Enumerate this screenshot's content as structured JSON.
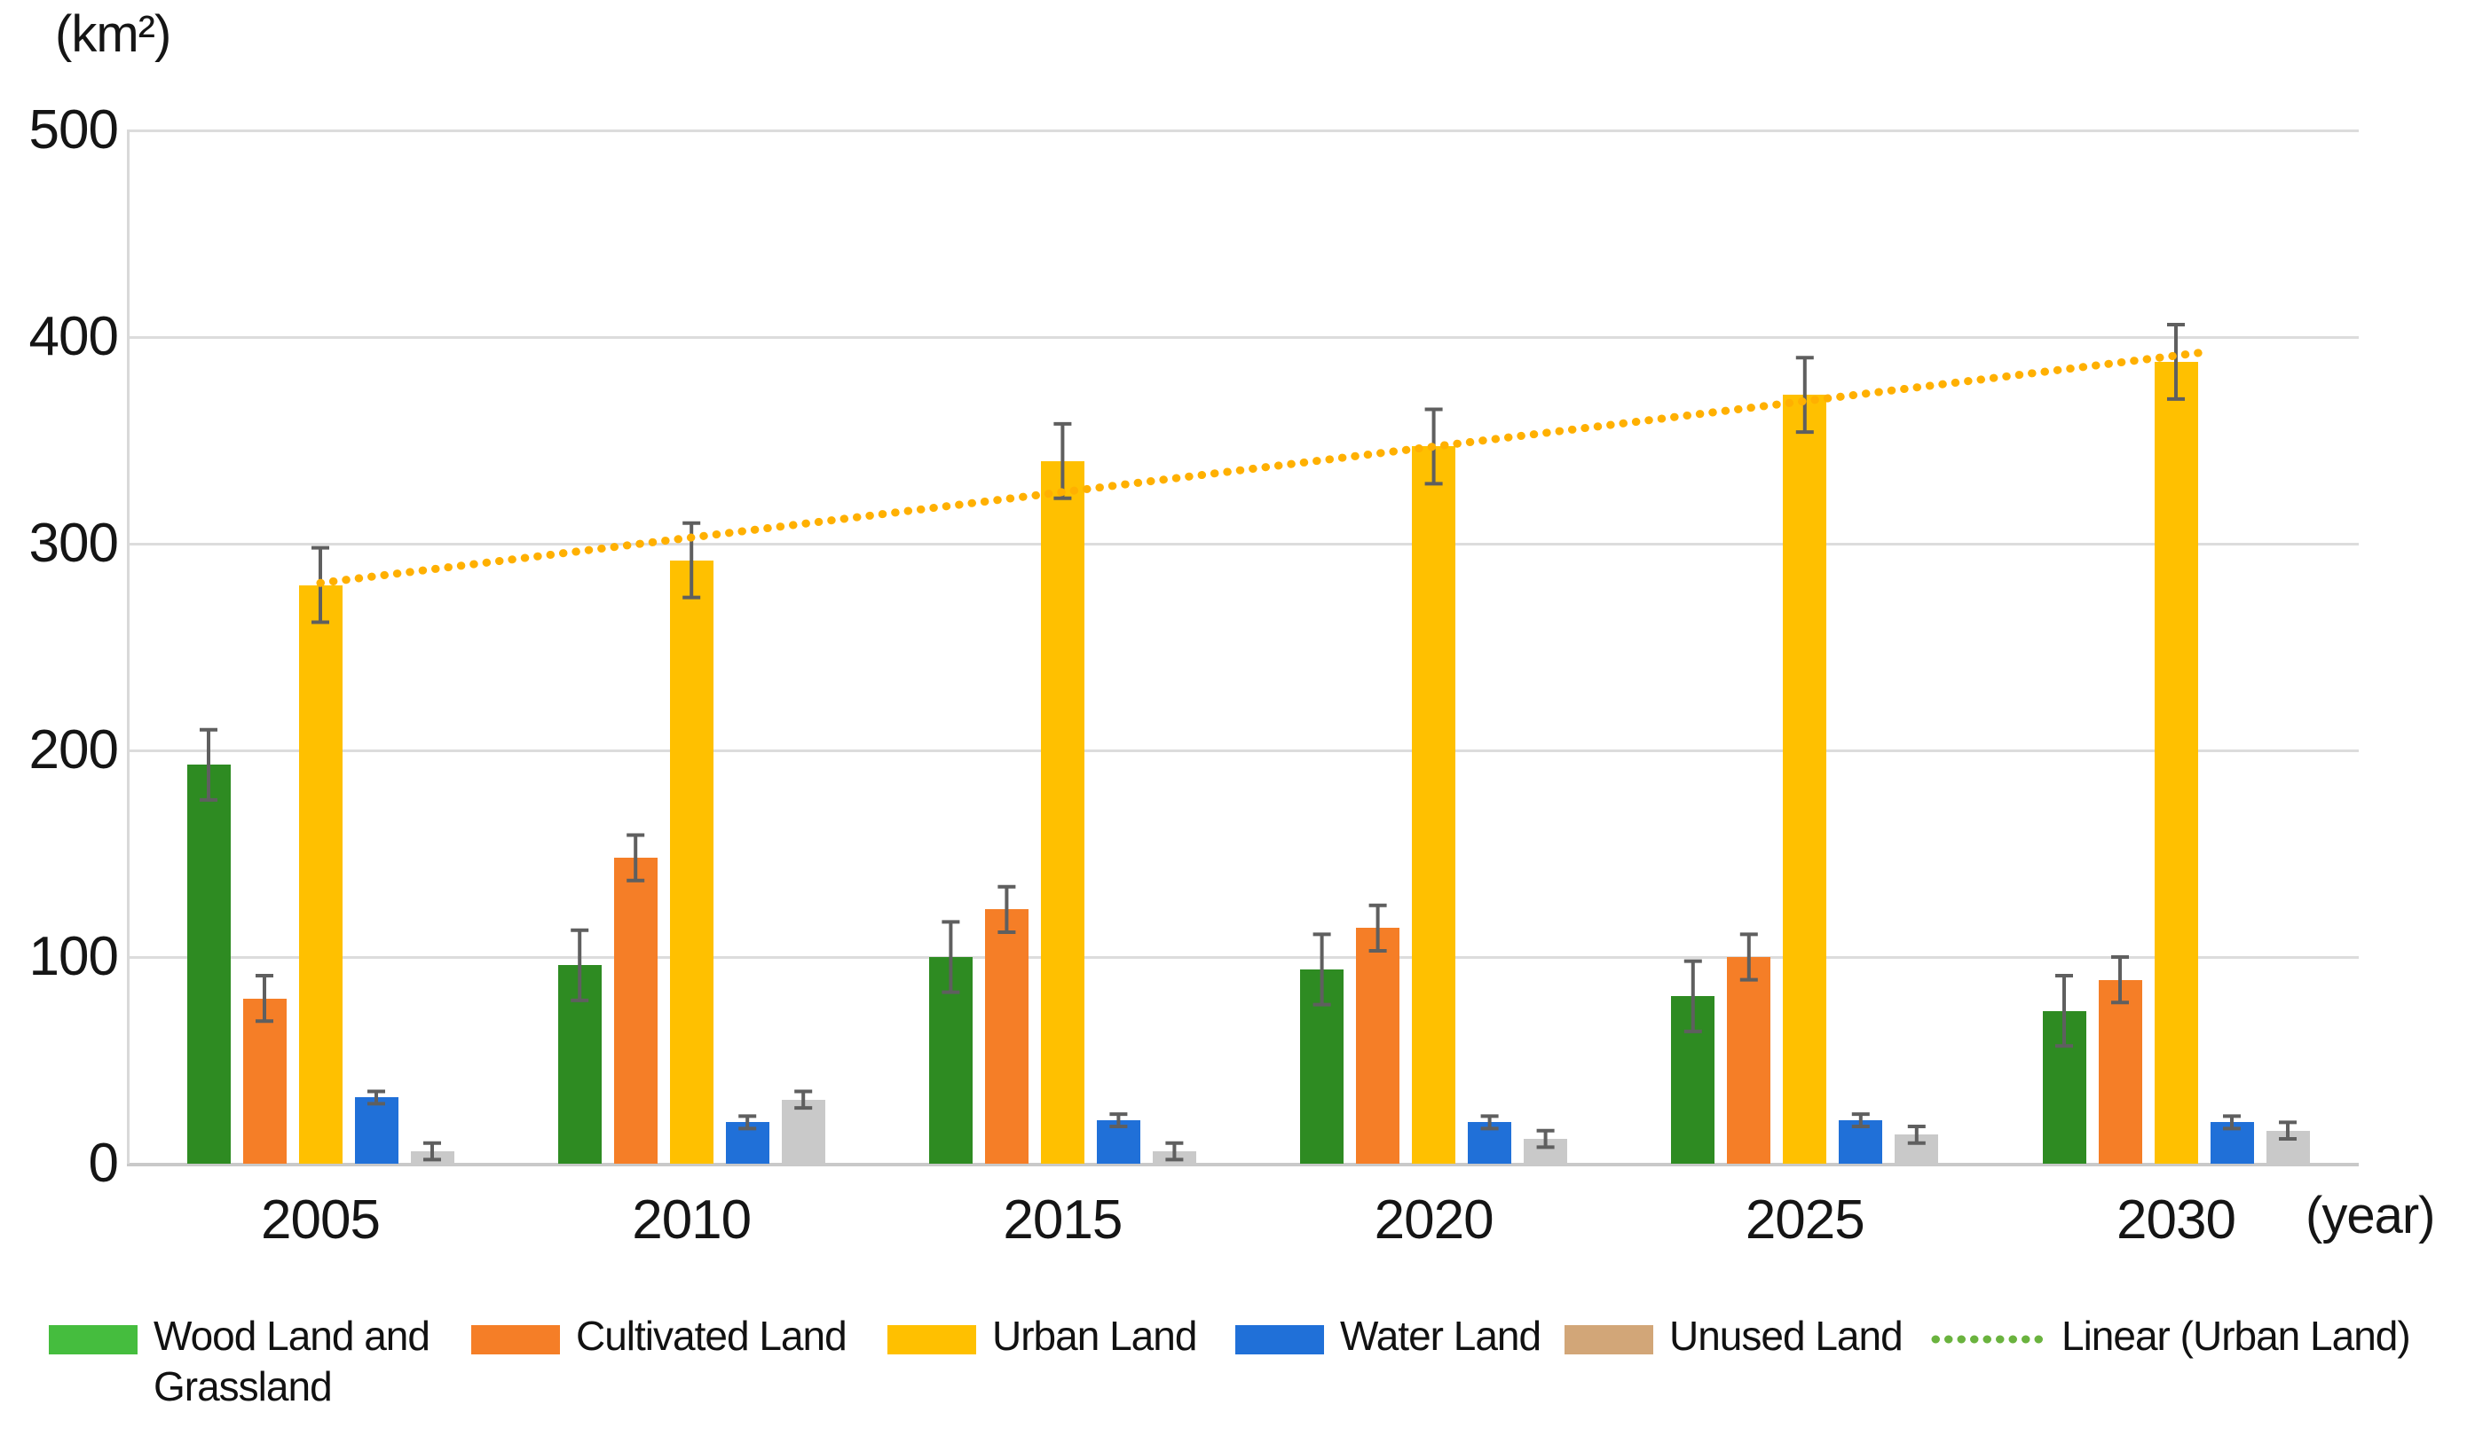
{
  "chart_data": {
    "type": "bar",
    "title": "",
    "unit_label": "(km²)",
    "x_axis_label": "(year)",
    "categories": [
      "2005",
      "2010",
      "2015",
      "2020",
      "2025",
      "2030"
    ],
    "series": [
      {
        "name": "Wood Land and Grassland",
        "legend_lines": [
          "Wood Land and",
          "Grassland"
        ],
        "color": "#2e8b22",
        "legend_color": "#45bd3e",
        "values": [
          193,
          96,
          100,
          94,
          81,
          74
        ],
        "error": 17
      },
      {
        "name": "Cultivated Land",
        "legend_lines": [
          "Cultivated Land"
        ],
        "color": "#f57e27",
        "legend_color": "#f57e27",
        "values": [
          80,
          148,
          123,
          114,
          100,
          89
        ],
        "error": 11
      },
      {
        "name": "Urban Land",
        "legend_lines": [
          "Urban Land"
        ],
        "color": "#ffc000",
        "legend_color": "#ffc000",
        "values": [
          280,
          292,
          340,
          347,
          372,
          388
        ],
        "error": 18
      },
      {
        "name": "Water Land",
        "legend_lines": [
          "Water Land"
        ],
        "color": "#2070d8",
        "legend_color": "#2070d8",
        "values": [
          32,
          20,
          21,
          20,
          21,
          20
        ],
        "error": 3
      },
      {
        "name": "Unused Land",
        "legend_lines": [
          "Unused Land"
        ],
        "color": "#c9c9c9",
        "legend_color": "#d2a678",
        "values": [
          6,
          31,
          6,
          12,
          14,
          16
        ],
        "error": 4
      }
    ],
    "trend": {
      "name": "Linear (Urban Land)",
      "legend_lines": [
        "Linear (Urban Land)"
      ],
      "color": "#ffb000",
      "legend_color": "#6ab33e",
      "start_value": 281,
      "end_value": 393
    },
    "y_axis": {
      "min": 0,
      "max": 500,
      "step": 100,
      "tick_labels": [
        "0",
        "100",
        "200",
        "300",
        "400",
        "500"
      ]
    },
    "grid": true,
    "error_bar_color": "#5f5f5f",
    "legend_position": "bottom"
  }
}
